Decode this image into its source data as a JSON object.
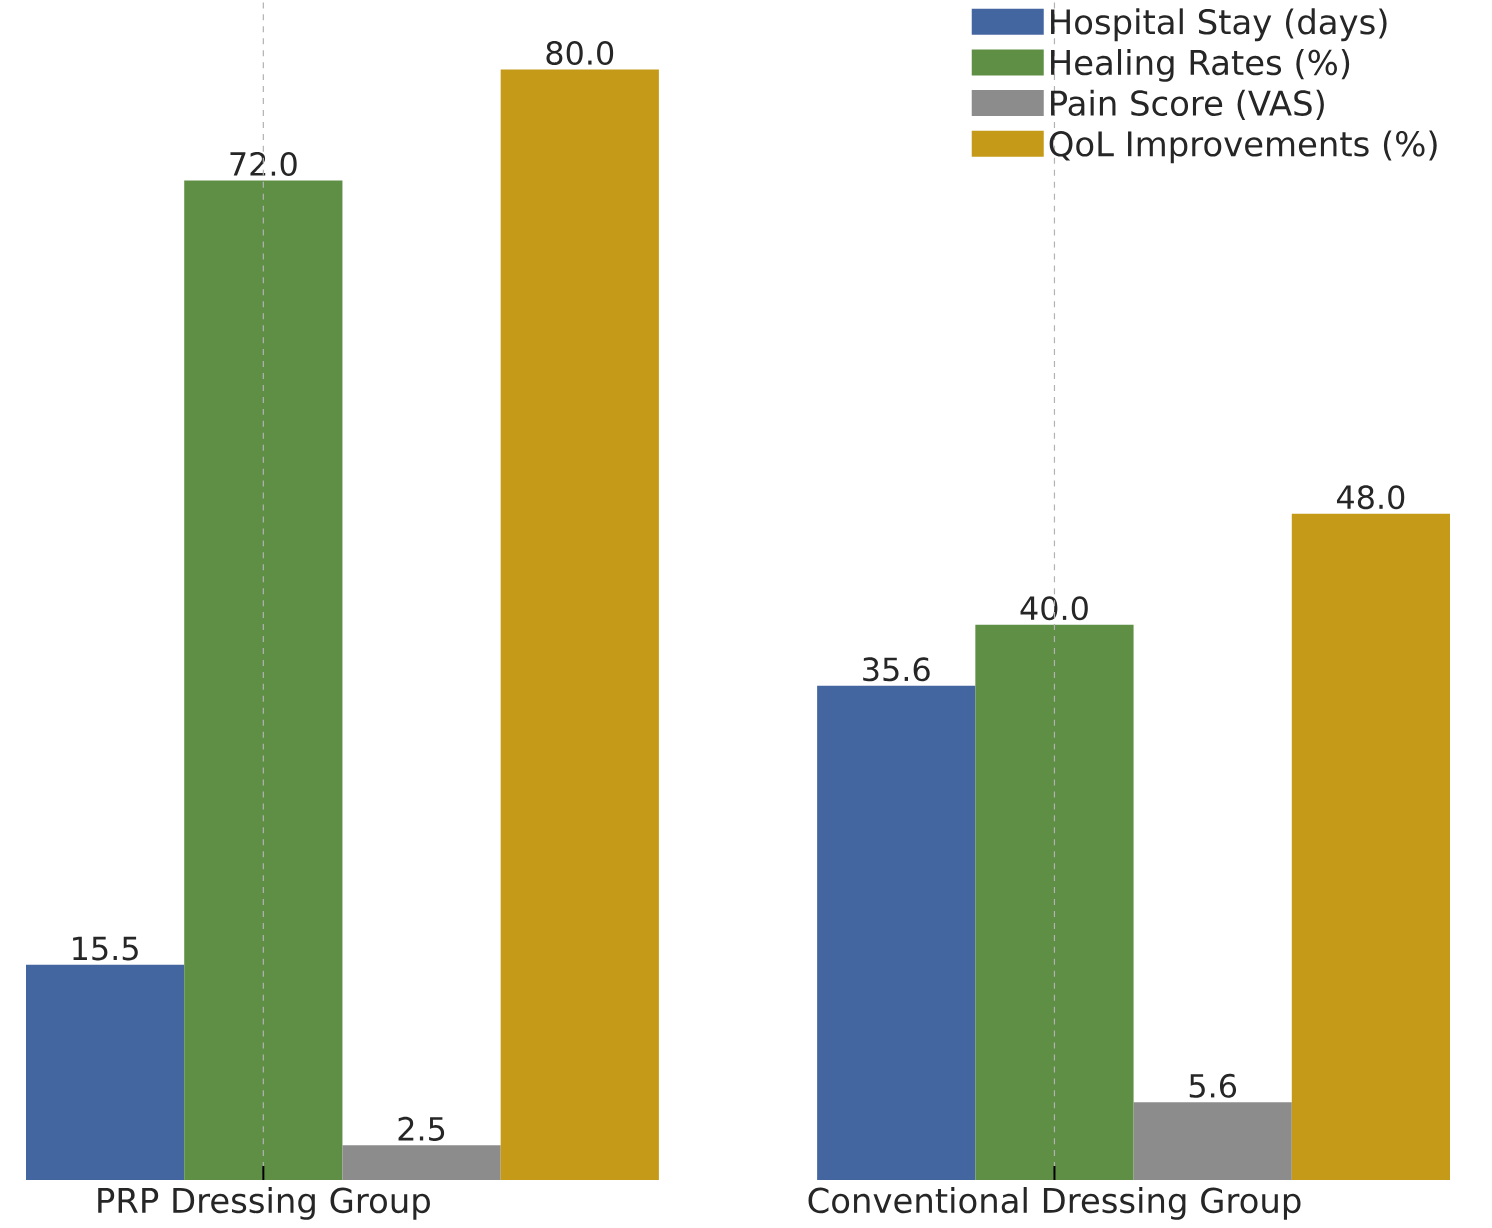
{
  "chart_data": {
    "type": "bar",
    "categories": [
      "PRP Dressing Group",
      "Conventional Dressing Group"
    ],
    "series": [
      {
        "name": "Hospital Stay (days)",
        "color": "#4466a0",
        "values": [
          15.5,
          35.6
        ],
        "value_labels": [
          "15.5",
          "35.6"
        ]
      },
      {
        "name": "Healing Rates (%)",
        "color": "#5e8f45",
        "values": [
          72.0,
          40.0
        ],
        "value_labels": [
          "72.0",
          "40.0"
        ]
      },
      {
        "name": "Pain Score (VAS)",
        "color": "#8c8c8c",
        "values": [
          2.5,
          5.6
        ],
        "value_labels": [
          "2.5",
          "5.6"
        ]
      },
      {
        "name": "QoL Improvements (%)",
        "color": "#c49a18",
        "values": [
          80.0,
          48.0
        ],
        "value_labels": [
          "80.0",
          "48.0"
        ]
      }
    ],
    "ylim": [
      0,
      85
    ],
    "grid": "x",
    "legend": "top right",
    "tick_labels": "x"
  }
}
